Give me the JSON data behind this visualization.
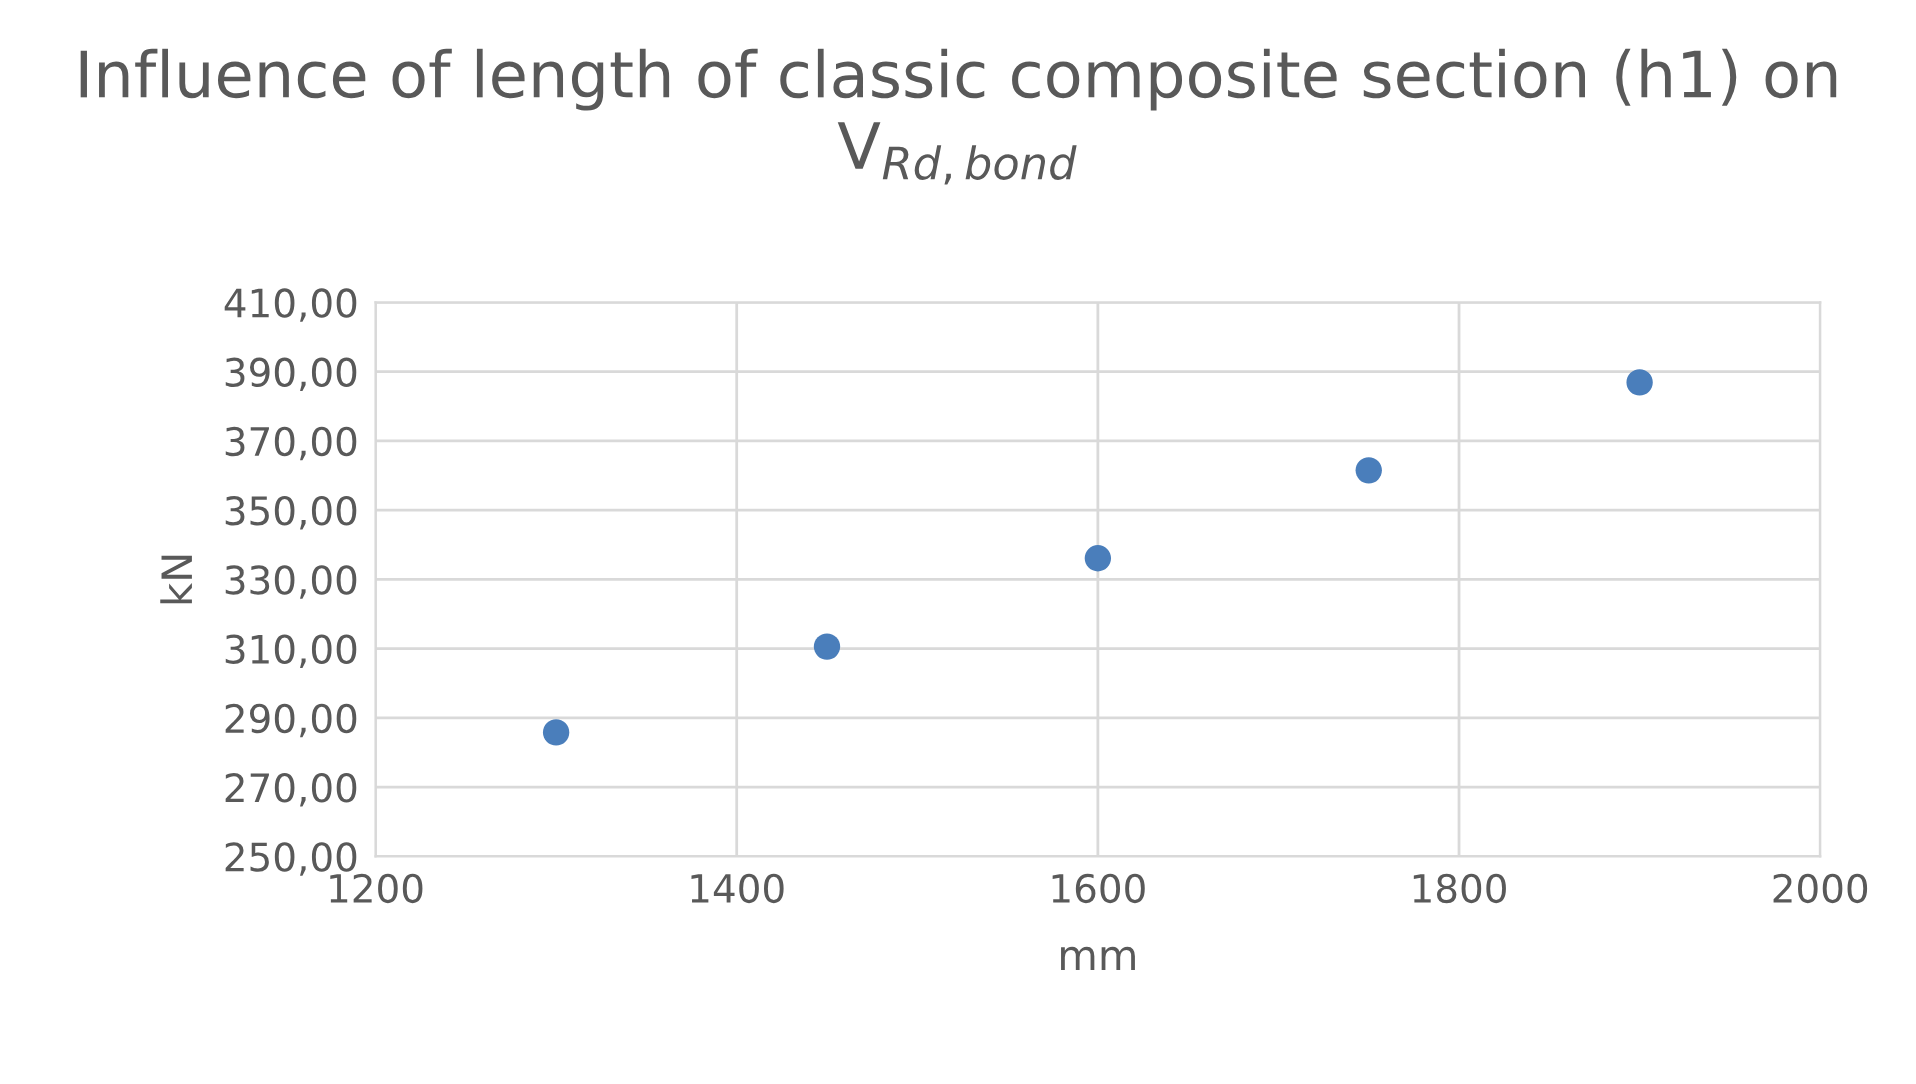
{
  "chart_data": {
    "type": "scatter",
    "title": "Influence of length of classic composite section (h1) on V$_{Rd,bond}$",
    "xlabel": "mm",
    "ylabel": "kN",
    "x": [
      1300,
      1450,
      1600,
      1750,
      1900
    ],
    "series": [
      {
        "color": "#4a7ebb",
        "values": [
          285.8,
          310.6,
          336.1,
          361.5,
          386.9
        ]
      }
    ],
    "xlim": [
      1200,
      2000
    ],
    "xticks": [
      1200,
      1400,
      1600,
      1800,
      2000
    ],
    "ylim": [
      250,
      410
    ],
    "yticks": [
      {
        "value": 250,
        "label": "250,00"
      },
      {
        "value": 270,
        "label": "270,00"
      },
      {
        "value": 290,
        "label": "290,00"
      },
      {
        "value": 310,
        "label": "310,00"
      },
      {
        "value": 330,
        "label": "330,00"
      },
      {
        "value": 350,
        "label": "350,00"
      },
      {
        "value": 370,
        "label": "370,00"
      },
      {
        "value": 390,
        "label": "390,00"
      },
      {
        "value": 410,
        "label": "410,00"
      }
    ],
    "grid": true,
    "marker": "circle",
    "legend": false
  }
}
